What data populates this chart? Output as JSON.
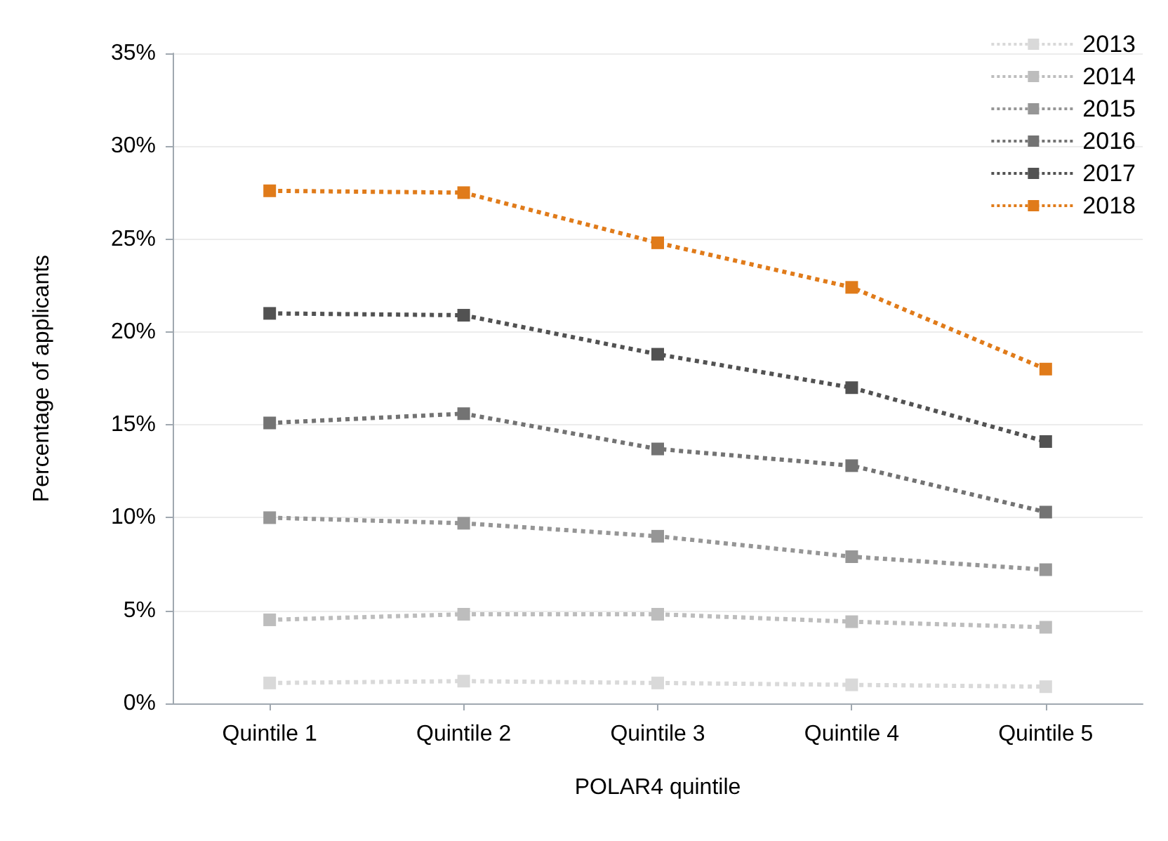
{
  "chart_data": {
    "type": "line",
    "xlabel": "POLAR4 quintile",
    "ylabel": "Percentage of applicants",
    "categories": [
      "Quintile 1",
      "Quintile 2",
      "Quintile 3",
      "Quintile 4",
      "Quintile 5"
    ],
    "series": [
      {
        "name": "2013",
        "color": "#d9d9d9",
        "values": [
          1.1,
          1.2,
          1.1,
          1.0,
          0.9
        ]
      },
      {
        "name": "2014",
        "color": "#bdbdbd",
        "values": [
          4.5,
          4.8,
          4.8,
          4.4,
          4.1
        ]
      },
      {
        "name": "2015",
        "color": "#969696",
        "values": [
          10.0,
          9.7,
          9.0,
          7.9,
          7.2
        ]
      },
      {
        "name": "2016",
        "color": "#737373",
        "values": [
          15.1,
          15.6,
          13.7,
          12.8,
          10.3
        ]
      },
      {
        "name": "2017",
        "color": "#525252",
        "values": [
          21.0,
          20.9,
          18.8,
          17.0,
          14.1
        ]
      },
      {
        "name": "2018",
        "color": "#e07b1a",
        "values": [
          27.6,
          27.5,
          24.8,
          22.4,
          18.0
        ]
      }
    ],
    "ylim": [
      0,
      35
    ],
    "yticks": [
      {
        "value": 0,
        "label": "0%"
      },
      {
        "value": 5,
        "label": "5%"
      },
      {
        "value": 10,
        "label": "10%"
      },
      {
        "value": 15,
        "label": "15%"
      },
      {
        "value": 20,
        "label": "20%"
      },
      {
        "value": 25,
        "label": "25%"
      },
      {
        "value": 30,
        "label": "30%"
      },
      {
        "value": 35,
        "label": "35%"
      }
    ],
    "grid": "y",
    "legend": "top right",
    "marker": "square",
    "line_style": "dotted"
  }
}
